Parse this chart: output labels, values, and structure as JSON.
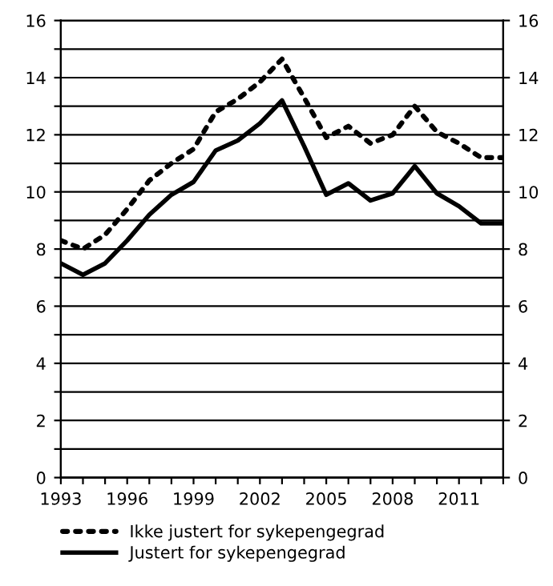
{
  "chart_data": {
    "type": "line",
    "x": [
      1993,
      1994,
      1995,
      1996,
      1997,
      1998,
      1999,
      2000,
      2001,
      2002,
      2003,
      2004,
      2005,
      2006,
      2007,
      2008,
      2009,
      2010,
      2011,
      2012,
      2013
    ],
    "series": [
      {
        "name": "Ikke justert for sykepengegrad",
        "color": "#000000",
        "line_style": "dotted",
        "values": [
          8.3,
          8.0,
          8.5,
          9.4,
          10.4,
          11.0,
          11.5,
          12.8,
          13.25,
          13.85,
          14.65,
          13.3,
          11.9,
          12.3,
          11.7,
          12.0,
          13.0,
          12.1,
          11.7,
          11.2,
          11.2
        ]
      },
      {
        "name": "Justert for sykepengegrad",
        "color": "#000000",
        "line_style": "solid",
        "values": [
          7.5,
          7.1,
          7.5,
          8.3,
          9.2,
          9.9,
          10.35,
          11.45,
          11.8,
          12.4,
          13.2,
          11.6,
          9.9,
          10.3,
          9.7,
          9.95,
          10.9,
          9.95,
          9.5,
          8.9,
          8.9
        ]
      }
    ],
    "xlim": [
      1993,
      2013
    ],
    "xticks": [
      1993,
      {
        "value": 1994,
        "label": null
      },
      {
        "value": 1995,
        "label": null
      },
      1996,
      {
        "value": 1997,
        "label": null
      },
      {
        "value": 1998,
        "label": null
      },
      1999,
      {
        "value": 2000,
        "label": null
      },
      {
        "value": 2001,
        "label": null
      },
      2002,
      {
        "value": 2003,
        "label": null
      },
      {
        "value": 2004,
        "label": null
      },
      2005,
      {
        "value": 2006,
        "label": null
      },
      {
        "value": 2007,
        "label": null
      },
      2008,
      {
        "value": 2009,
        "label": null
      },
      {
        "value": 2010,
        "label": null
      },
      2011,
      {
        "value": 2012,
        "label": null
      },
      {
        "value": 2013,
        "label": null
      }
    ],
    "ylim": [
      0,
      16
    ],
    "yticks": [
      0,
      {
        "value": 1,
        "label": null
      },
      2,
      {
        "value": 3,
        "label": null
      },
      4,
      {
        "value": 5,
        "label": null
      },
      6,
      {
        "value": 7,
        "label": null
      },
      8,
      {
        "value": 9,
        "label": null
      },
      10,
      {
        "value": 11,
        "label": null
      },
      12,
      {
        "value": 13,
        "label": null
      },
      14,
      {
        "value": 15,
        "label": null
      },
      16
    ],
    "y2lim": [
      0,
      16
    ],
    "y2ticks": [
      0,
      2,
      4,
      6,
      8,
      10,
      12,
      14,
      16
    ],
    "grid": "y",
    "legend": "bottom",
    "marker": "none"
  }
}
